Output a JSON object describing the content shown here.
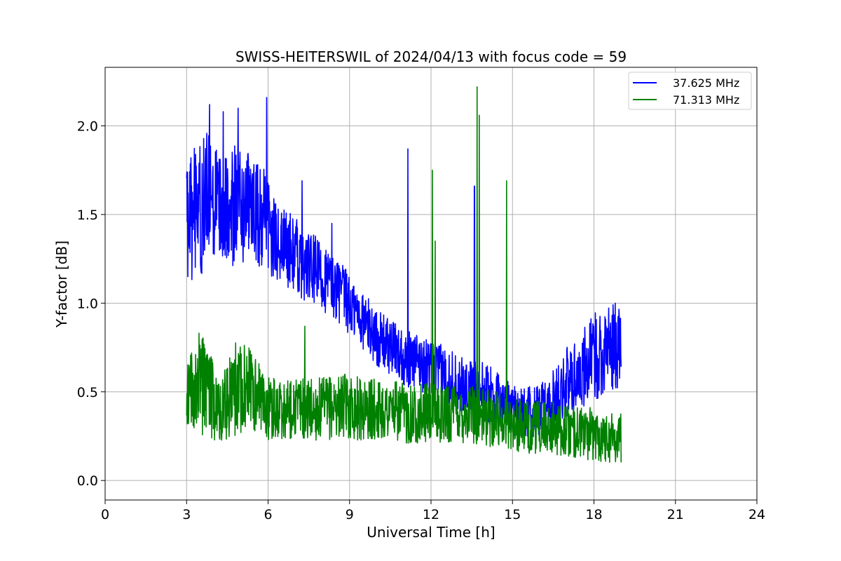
{
  "chart_data": {
    "type": "line",
    "title": "SWISS-HEITERSWIL of 2024/04/13 with focus code = 59",
    "xlabel": "Universal Time [h]",
    "ylabel": "Y-factor [dB]",
    "xlim": [
      0,
      24
    ],
    "ylim": [
      -0.11,
      2.33
    ],
    "x_ticks": [
      "0",
      "3",
      "6",
      "9",
      "12",
      "15",
      "18",
      "21",
      "24"
    ],
    "y_ticks": [
      "0.0",
      "0.5",
      "1.0",
      "1.5",
      "2.0"
    ],
    "grid": true,
    "legend_position": "top-right",
    "series": [
      {
        "name": "37.625 MHz",
        "color": "#0000ff",
        "x": [
          3.0,
          3.25,
          3.5,
          3.75,
          4.0,
          4.25,
          4.5,
          4.75,
          5.0,
          5.25,
          5.5,
          5.75,
          5.9,
          6.25,
          6.5,
          6.75,
          7.0,
          7.25,
          7.5,
          7.75,
          8.0,
          8.25,
          8.5,
          8.75,
          9.0,
          9.25,
          9.5,
          9.75,
          10.0,
          10.25,
          10.5,
          10.75,
          11.0,
          11.1,
          11.25,
          11.5,
          11.75,
          12.0,
          12.25,
          12.5,
          12.75,
          13.0,
          13.25,
          13.5,
          13.6,
          13.75,
          14.0,
          14.25,
          14.5,
          14.75,
          15.0,
          15.25,
          15.5,
          15.75,
          16.0,
          16.25,
          16.5,
          16.75,
          17.0,
          17.25,
          17.5,
          17.75,
          18.0,
          18.25,
          18.5,
          18.75,
          19.0
        ],
        "mid": [
          1.45,
          1.5,
          1.55,
          1.58,
          1.55,
          1.55,
          1.56,
          1.55,
          1.55,
          1.55,
          1.52,
          1.48,
          1.45,
          1.35,
          1.33,
          1.3,
          1.28,
          1.22,
          1.2,
          1.18,
          1.15,
          1.12,
          1.08,
          1.05,
          0.98,
          0.95,
          0.9,
          0.86,
          0.8,
          0.78,
          0.75,
          0.73,
          0.7,
          0.68,
          0.68,
          0.67,
          0.65,
          0.62,
          0.62,
          0.6,
          0.58,
          0.55,
          0.52,
          0.52,
          0.52,
          0.52,
          0.5,
          0.48,
          0.45,
          0.45,
          0.42,
          0.4,
          0.38,
          0.38,
          0.4,
          0.42,
          0.45,
          0.5,
          0.55,
          0.58,
          0.62,
          0.65,
          0.7,
          0.72,
          0.75,
          0.75,
          0.78
        ],
        "amp": [
          0.3,
          0.38,
          0.4,
          0.38,
          0.35,
          0.3,
          0.32,
          0.35,
          0.33,
          0.3,
          0.3,
          0.3,
          0.3,
          0.22,
          0.22,
          0.22,
          0.22,
          0.2,
          0.2,
          0.2,
          0.2,
          0.18,
          0.18,
          0.18,
          0.17,
          0.17,
          0.16,
          0.16,
          0.16,
          0.16,
          0.16,
          0.16,
          0.16,
          0.16,
          0.16,
          0.16,
          0.16,
          0.16,
          0.16,
          0.16,
          0.16,
          0.16,
          0.16,
          0.16,
          0.16,
          0.16,
          0.16,
          0.16,
          0.15,
          0.15,
          0.15,
          0.15,
          0.15,
          0.15,
          0.15,
          0.15,
          0.18,
          0.18,
          0.2,
          0.22,
          0.22,
          0.25,
          0.25,
          0.25,
          0.25,
          0.25,
          0.25
        ],
        "spikes": [
          [
            3.85,
            2.12
          ],
          [
            4.35,
            2.08
          ],
          [
            4.9,
            2.1
          ],
          [
            5.95,
            2.16
          ],
          [
            7.25,
            1.69
          ],
          [
            8.35,
            1.45
          ],
          [
            11.15,
            1.87
          ],
          [
            13.6,
            1.66
          ]
        ]
      },
      {
        "name": "71.313 MHz",
        "color": "#008000",
        "x": [
          3.0,
          3.25,
          3.5,
          3.75,
          4.0,
          4.25,
          4.5,
          4.75,
          5.0,
          5.25,
          5.5,
          5.75,
          6.0,
          6.5,
          7.0,
          7.5,
          8.0,
          8.5,
          9.0,
          9.5,
          10.0,
          10.5,
          11.0,
          11.5,
          12.0,
          12.5,
          13.0,
          13.5,
          14.0,
          14.5,
          15.0,
          15.5,
          16.0,
          16.5,
          17.0,
          17.5,
          18.0,
          18.5,
          19.0
        ],
        "mid": [
          0.5,
          0.55,
          0.55,
          0.5,
          0.45,
          0.42,
          0.45,
          0.5,
          0.55,
          0.52,
          0.48,
          0.45,
          0.4,
          0.4,
          0.42,
          0.4,
          0.4,
          0.42,
          0.42,
          0.4,
          0.4,
          0.4,
          0.38,
          0.38,
          0.38,
          0.38,
          0.38,
          0.38,
          0.35,
          0.35,
          0.32,
          0.3,
          0.3,
          0.3,
          0.28,
          0.27,
          0.26,
          0.25,
          0.25
        ],
        "amp": [
          0.22,
          0.25,
          0.3,
          0.25,
          0.22,
          0.2,
          0.22,
          0.28,
          0.28,
          0.25,
          0.22,
          0.2,
          0.18,
          0.18,
          0.18,
          0.18,
          0.18,
          0.18,
          0.18,
          0.18,
          0.17,
          0.17,
          0.17,
          0.17,
          0.17,
          0.17,
          0.17,
          0.17,
          0.16,
          0.16,
          0.15,
          0.15,
          0.15,
          0.15,
          0.15,
          0.15,
          0.15,
          0.15,
          0.15
        ],
        "spikes": [
          [
            7.35,
            0.87
          ],
          [
            12.05,
            1.75
          ],
          [
            12.15,
            1.35
          ],
          [
            13.7,
            2.22
          ],
          [
            13.78,
            2.06
          ],
          [
            14.78,
            1.69
          ]
        ]
      }
    ]
  }
}
